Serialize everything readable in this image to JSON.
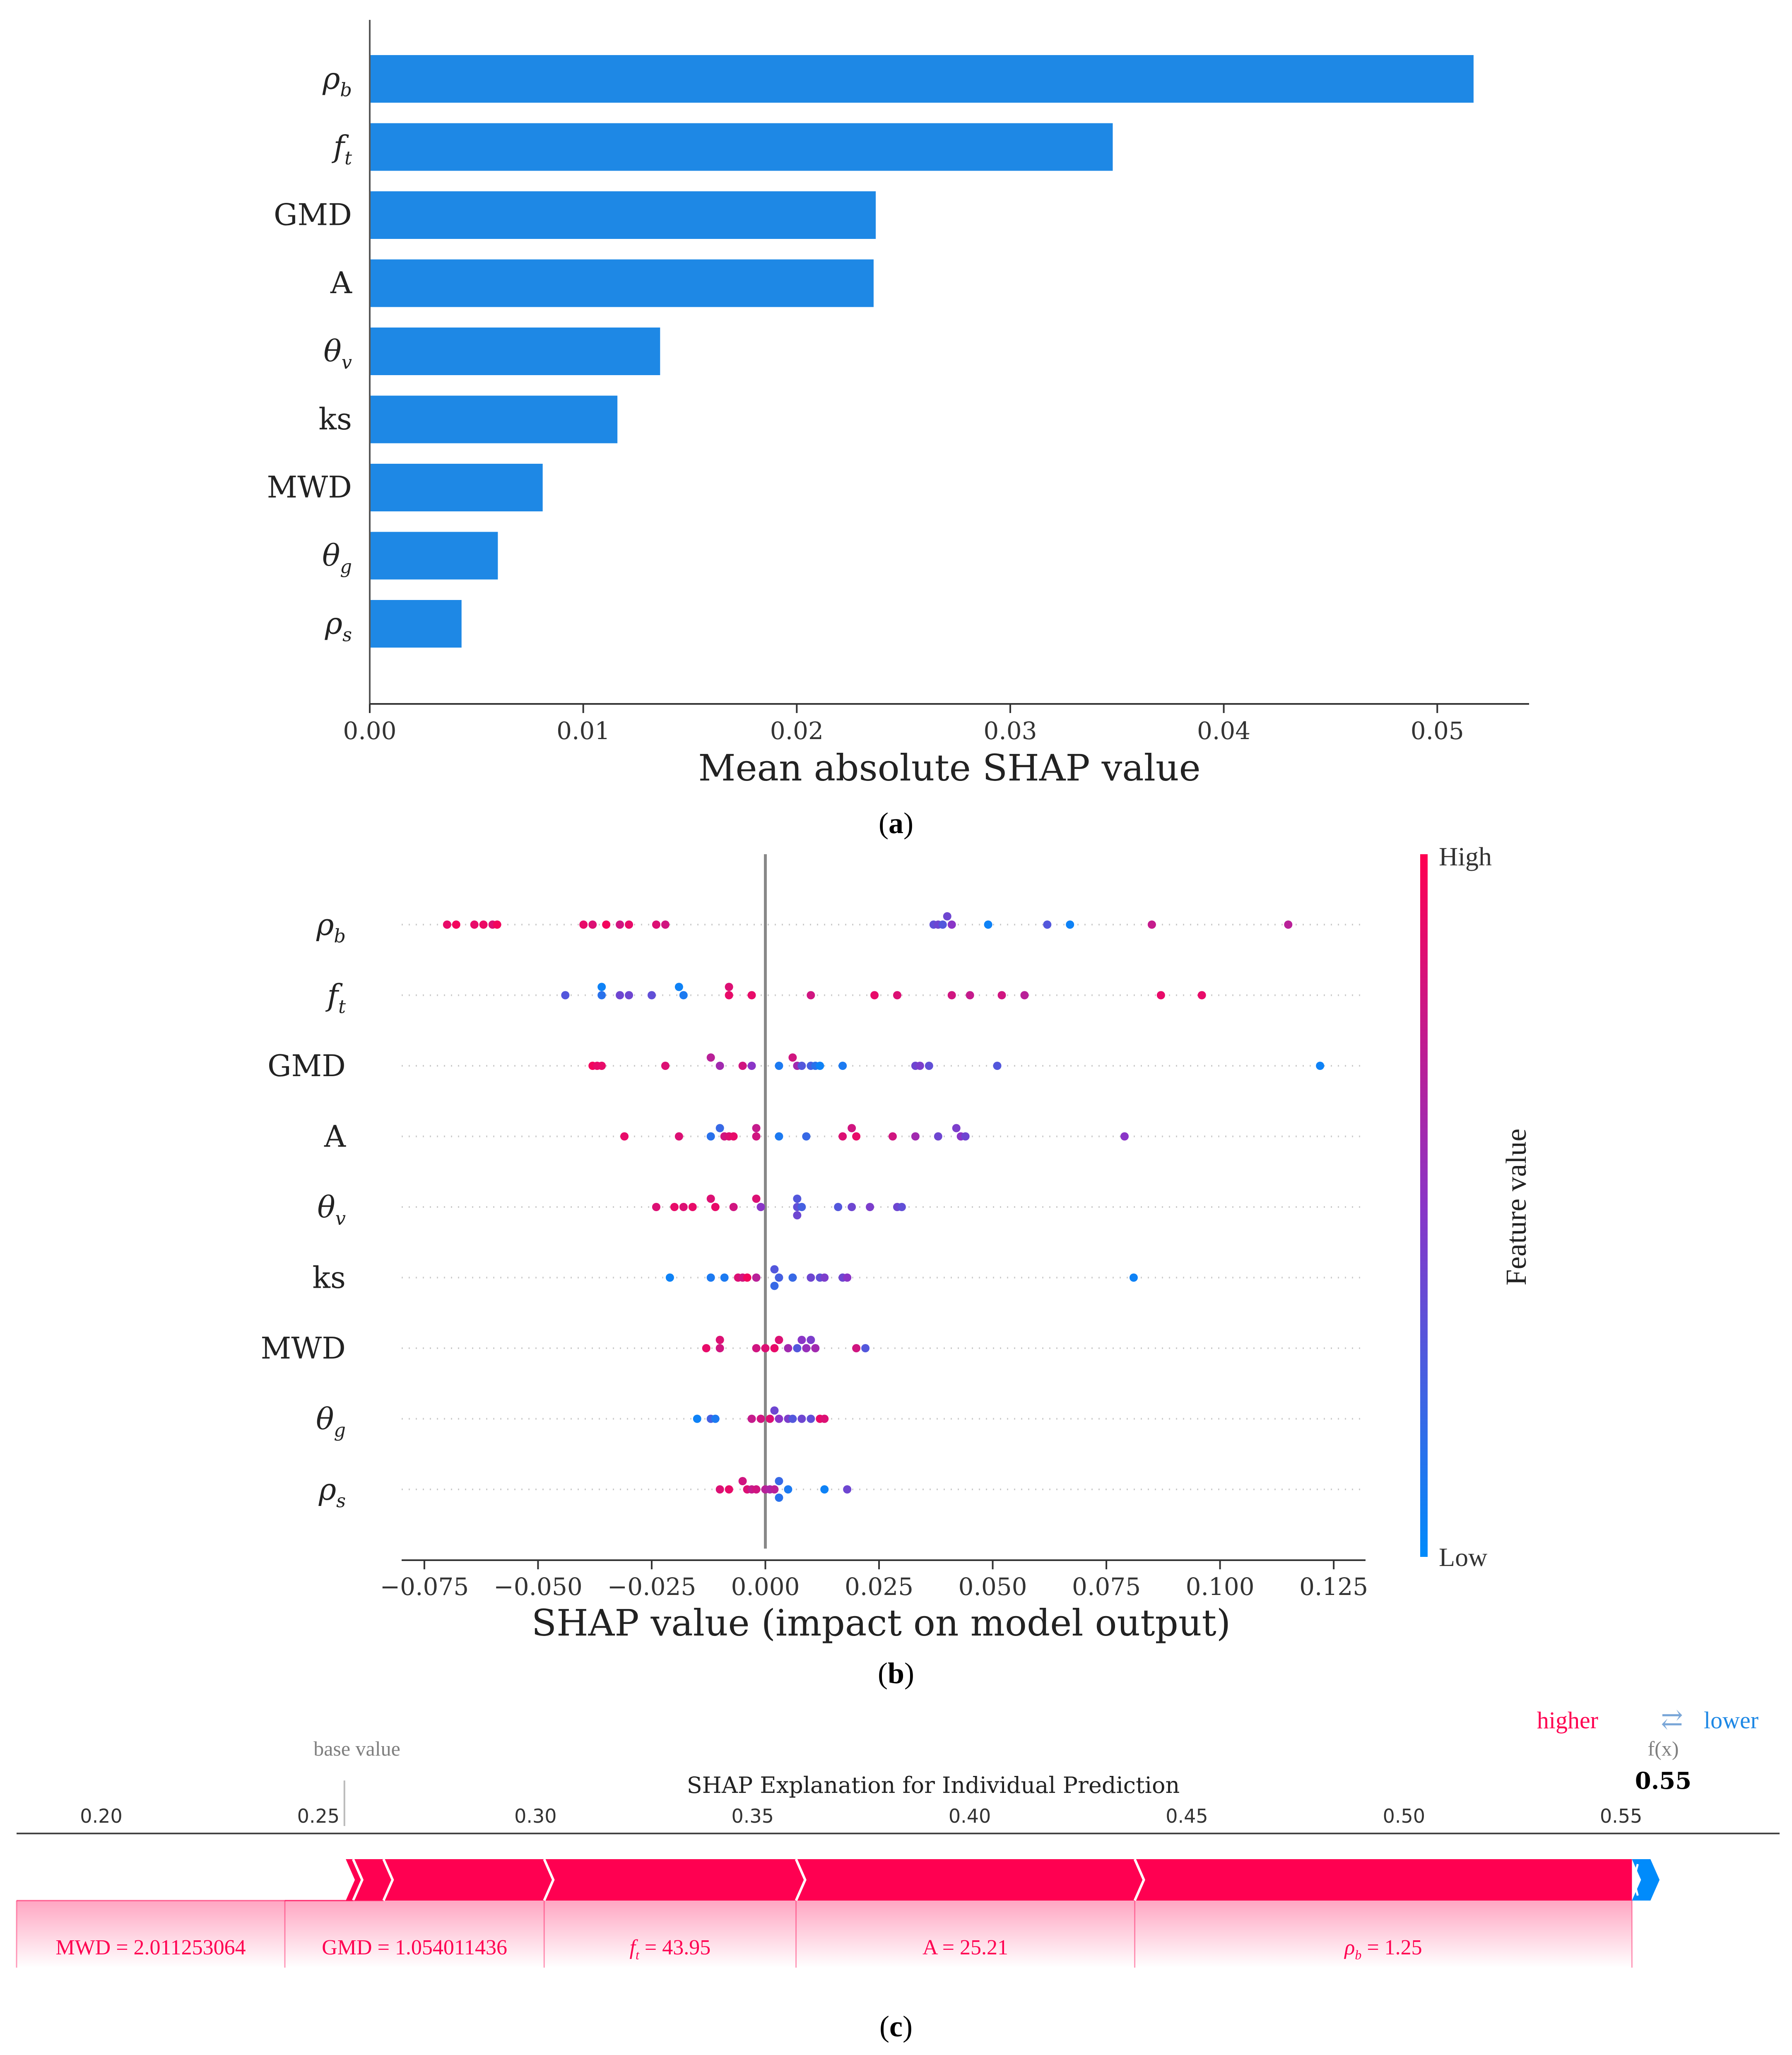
{
  "panel_labels": {
    "a": {
      "open": "(",
      "letter": "a",
      "close": ")"
    },
    "b": {
      "open": "(",
      "letter": "b",
      "close": ")"
    },
    "c": {
      "open": "(",
      "letter": "c",
      "close": ")"
    }
  },
  "colors": {
    "bar": "#1E88E5",
    "high": "#FF0051",
    "low": "#008BFB",
    "mid": "#8A35C7",
    "neg": "#1E88E5",
    "axis": "#333333",
    "grid_dots": "#cccccc",
    "text_gray": "#7f7f7f"
  },
  "chart_data": [
    {
      "id": "a",
      "type": "bar",
      "orientation": "horizontal",
      "features": [
        {
          "label": "ρ",
          "sub": "b"
        },
        {
          "label": "f",
          "sub": "t"
        },
        {
          "label": "GMD",
          "sub": ""
        },
        {
          "label": "A",
          "sub": ""
        },
        {
          "label": "θ",
          "sub": "v"
        },
        {
          "label": "ks",
          "sub": ""
        },
        {
          "label": "MWD",
          "sub": ""
        },
        {
          "label": "θ",
          "sub": "g"
        },
        {
          "label": "ρ",
          "sub": "s"
        }
      ],
      "values": [
        0.0517,
        0.0348,
        0.0237,
        0.0236,
        0.0136,
        0.0116,
        0.0081,
        0.006,
        0.0043
      ],
      "xlim": [
        0.0,
        0.0543
      ],
      "ticks": [
        0.0,
        0.01,
        0.02,
        0.03,
        0.04,
        0.05
      ],
      "tick_labels": [
        "0.00",
        "0.01",
        "0.02",
        "0.03",
        "0.04",
        "0.05"
      ],
      "xlabel": "Mean absolute SHAP value"
    },
    {
      "id": "b",
      "type": "scatter",
      "subtype": "beeswarm",
      "features": [
        {
          "label": "ρ",
          "sub": "b"
        },
        {
          "label": "f",
          "sub": "t"
        },
        {
          "label": "GMD",
          "sub": ""
        },
        {
          "label": "A",
          "sub": ""
        },
        {
          "label": "θ",
          "sub": "v"
        },
        {
          "label": "ks",
          "sub": ""
        },
        {
          "label": "MWD",
          "sub": ""
        },
        {
          "label": "θ",
          "sub": "g"
        },
        {
          "label": "ρ",
          "sub": "s"
        }
      ],
      "xlim": [
        -0.08,
        0.132
      ],
      "ticks": [
        -0.075,
        -0.05,
        -0.025,
        0.0,
        0.025,
        0.05,
        0.075,
        0.1,
        0.125
      ],
      "tick_labels": [
        "−0.075",
        "−0.050",
        "−0.025",
        "0.000",
        "0.025",
        "0.050",
        "0.075",
        "0.100",
        "0.125"
      ],
      "xlabel": "SHAP value (impact on model output)",
      "colorbar": {
        "label": "Feature value",
        "high": "High",
        "low": "Low"
      },
      "points": [
        [
          [
            -0.07,
            0,
            0.9
          ],
          [
            -0.068,
            0,
            0.95
          ],
          [
            -0.064,
            0,
            0.9
          ],
          [
            -0.062,
            0,
            0.92
          ],
          [
            -0.06,
            0,
            0.85
          ],
          [
            -0.059,
            0,
            0.95
          ],
          [
            -0.04,
            0,
            0.9
          ],
          [
            -0.038,
            0,
            0.85
          ],
          [
            -0.035,
            0,
            0.95
          ],
          [
            -0.032,
            0,
            0.8
          ],
          [
            -0.03,
            0,
            0.9
          ],
          [
            -0.024,
            0,
            0.85
          ],
          [
            -0.022,
            0,
            0.8
          ],
          [
            0.037,
            0,
            0.35
          ],
          [
            0.038,
            0,
            0.4
          ],
          [
            0.039,
            0,
            0.3
          ],
          [
            0.04,
            1,
            0.4
          ],
          [
            0.041,
            0,
            0.5
          ],
          [
            0.049,
            0,
            0.05
          ],
          [
            0.062,
            0,
            0.3
          ],
          [
            0.067,
            0,
            0.05
          ],
          [
            0.085,
            0,
            0.75
          ],
          [
            0.115,
            0,
            0.7
          ]
        ],
        [
          [
            -0.044,
            0,
            0.3
          ],
          [
            -0.036,
            1,
            0.05
          ],
          [
            -0.036,
            0,
            0.15
          ],
          [
            -0.032,
            0,
            0.4
          ],
          [
            -0.03,
            0,
            0.4
          ],
          [
            -0.025,
            0,
            0.35
          ],
          [
            -0.019,
            1,
            0.05
          ],
          [
            -0.018,
            0,
            0.1
          ],
          [
            -0.008,
            1,
            0.85
          ],
          [
            -0.008,
            0,
            0.9
          ],
          [
            -0.003,
            0,
            0.9
          ],
          [
            0.01,
            0,
            0.8
          ],
          [
            0.024,
            0,
            0.9
          ],
          [
            0.029,
            0,
            0.85
          ],
          [
            0.041,
            0,
            0.8
          ],
          [
            0.045,
            0,
            0.75
          ],
          [
            0.052,
            0,
            0.8
          ],
          [
            0.057,
            0,
            0.7
          ],
          [
            0.087,
            0,
            0.9
          ],
          [
            0.096,
            0,
            0.9
          ]
        ],
        [
          [
            -0.038,
            0,
            0.95
          ],
          [
            -0.037,
            0,
            0.9
          ],
          [
            -0.036,
            0,
            0.9
          ],
          [
            -0.022,
            0,
            0.85
          ],
          [
            -0.012,
            1,
            0.7
          ],
          [
            -0.01,
            0,
            0.6
          ],
          [
            -0.005,
            0,
            0.8
          ],
          [
            -0.003,
            0,
            0.5
          ],
          [
            0.003,
            0,
            0.1
          ],
          [
            0.006,
            1,
            0.8
          ],
          [
            0.007,
            0,
            0.6
          ],
          [
            0.008,
            0,
            0.3
          ],
          [
            0.01,
            0,
            0.25
          ],
          [
            0.011,
            0,
            0.15
          ],
          [
            0.012,
            0,
            0.05
          ],
          [
            0.017,
            0,
            0.1
          ],
          [
            0.033,
            0,
            0.4
          ],
          [
            0.034,
            0,
            0.45
          ],
          [
            0.036,
            0,
            0.35
          ],
          [
            0.051,
            0,
            0.3
          ],
          [
            0.122,
            0,
            0.05
          ]
        ],
        [
          [
            -0.031,
            0,
            0.9
          ],
          [
            -0.019,
            0,
            0.85
          ],
          [
            -0.012,
            0,
            0.15
          ],
          [
            -0.01,
            1,
            0.2
          ],
          [
            -0.009,
            0,
            0.8
          ],
          [
            -0.008,
            0,
            0.85
          ],
          [
            -0.007,
            0,
            0.9
          ],
          [
            -0.002,
            1,
            0.75
          ],
          [
            -0.002,
            0,
            0.8
          ],
          [
            0.003,
            0,
            0.1
          ],
          [
            0.009,
            0,
            0.2
          ],
          [
            0.017,
            0,
            0.85
          ],
          [
            0.019,
            1,
            0.8
          ],
          [
            0.02,
            0,
            0.9
          ],
          [
            0.028,
            0,
            0.8
          ],
          [
            0.033,
            0,
            0.6
          ],
          [
            0.038,
            0,
            0.4
          ],
          [
            0.042,
            1,
            0.45
          ],
          [
            0.043,
            0,
            0.5
          ],
          [
            0.044,
            0,
            0.4
          ],
          [
            0.079,
            0,
            0.5
          ]
        ],
        [
          [
            -0.024,
            0,
            0.85
          ],
          [
            -0.02,
            0,
            0.9
          ],
          [
            -0.018,
            0,
            0.85
          ],
          [
            -0.016,
            0,
            0.9
          ],
          [
            -0.012,
            1,
            0.85
          ],
          [
            -0.011,
            0,
            0.9
          ],
          [
            -0.007,
            0,
            0.8
          ],
          [
            -0.002,
            1,
            0.85
          ],
          [
            -0.001,
            0,
            0.5
          ],
          [
            0.007,
            1,
            0.3
          ],
          [
            0.007,
            0,
            0.35
          ],
          [
            0.008,
            0,
            0.25
          ],
          [
            0.007,
            -1,
            0.4
          ],
          [
            0.016,
            0,
            0.3
          ],
          [
            0.019,
            0,
            0.4
          ],
          [
            0.023,
            0,
            0.45
          ],
          [
            0.029,
            0,
            0.4
          ],
          [
            0.03,
            0,
            0.35
          ]
        ],
        [
          [
            -0.021,
            0,
            0.05
          ],
          [
            -0.012,
            0,
            0.1
          ],
          [
            -0.009,
            0,
            0.1
          ],
          [
            -0.006,
            0,
            0.85
          ],
          [
            -0.005,
            0,
            0.8
          ],
          [
            -0.004,
            0,
            0.95
          ],
          [
            -0.002,
            0,
            0.7
          ],
          [
            0.002,
            1,
            0.3
          ],
          [
            0.002,
            -1,
            0.2
          ],
          [
            0.003,
            0,
            0.25
          ],
          [
            0.006,
            0,
            0.2
          ],
          [
            0.01,
            0,
            0.4
          ],
          [
            0.012,
            0,
            0.35
          ],
          [
            0.013,
            0,
            0.45
          ],
          [
            0.017,
            0,
            0.4
          ],
          [
            0.018,
            0,
            0.5
          ],
          [
            0.081,
            0,
            0.05
          ]
        ],
        [
          [
            -0.013,
            0,
            0.9
          ],
          [
            -0.01,
            1,
            0.85
          ],
          [
            -0.01,
            0,
            0.8
          ],
          [
            -0.002,
            0,
            0.8
          ],
          [
            0.0,
            0,
            0.85
          ],
          [
            0.002,
            0,
            0.9
          ],
          [
            0.003,
            1,
            0.85
          ],
          [
            0.005,
            0,
            0.6
          ],
          [
            0.007,
            0,
            0.3
          ],
          [
            0.008,
            1,
            0.5
          ],
          [
            0.009,
            0,
            0.55
          ],
          [
            0.01,
            1,
            0.45
          ],
          [
            0.011,
            0,
            0.6
          ],
          [
            0.02,
            0,
            0.8
          ],
          [
            0.022,
            0,
            0.3
          ]
        ],
        [
          [
            -0.015,
            0,
            0.05
          ],
          [
            -0.012,
            0,
            0.25
          ],
          [
            -0.011,
            0,
            0.1
          ],
          [
            -0.003,
            0,
            0.75
          ],
          [
            -0.001,
            0,
            0.8
          ],
          [
            0.001,
            0,
            0.85
          ],
          [
            0.002,
            1,
            0.4
          ],
          [
            0.003,
            0,
            0.5
          ],
          [
            0.005,
            0,
            0.45
          ],
          [
            0.006,
            0,
            0.3
          ],
          [
            0.008,
            0,
            0.4
          ],
          [
            0.01,
            0,
            0.35
          ],
          [
            0.012,
            0,
            0.9
          ],
          [
            0.013,
            0,
            0.85
          ]
        ],
        [
          [
            -0.01,
            0,
            0.85
          ],
          [
            -0.008,
            0,
            0.9
          ],
          [
            -0.005,
            1,
            0.8
          ],
          [
            -0.004,
            0,
            0.85
          ],
          [
            -0.003,
            0,
            0.75
          ],
          [
            -0.002,
            0,
            0.8
          ],
          [
            0.0,
            0,
            0.7
          ],
          [
            0.001,
            0,
            0.65
          ],
          [
            0.002,
            0,
            0.7
          ],
          [
            0.003,
            1,
            0.2
          ],
          [
            0.003,
            -1,
            0.15
          ],
          [
            0.005,
            0,
            0.1
          ],
          [
            0.013,
            0,
            0.05
          ],
          [
            0.018,
            0,
            0.4
          ]
        ]
      ]
    },
    {
      "id": "c",
      "type": "bar",
      "subtype": "force_plot",
      "title": "SHAP Explanation for Individual Prediction",
      "legend": {
        "higher": "higher",
        "arrows": "⇄",
        "lower": "lower"
      },
      "base_value_label": "base value",
      "base_value": 0.256,
      "fx_label": "f(x)",
      "fx_value": 0.55,
      "fx_text": "0.55",
      "xlim": [
        0.1805,
        0.5865
      ],
      "ticks": [
        0.2,
        0.25,
        0.3,
        0.35,
        0.4,
        0.45,
        0.5,
        0.55
      ],
      "tick_labels": [
        "0.20",
        "0.25",
        "0.30",
        "0.35",
        "0.40",
        "0.45",
        "0.50",
        "0.55"
      ],
      "segments": [
        {
          "from": 0.256,
          "to": 0.258,
          "feature": "",
          "value": ""
        },
        {
          "from": 0.258,
          "to": 0.265,
          "feature": "MWD",
          "value": "2.011253064"
        },
        {
          "from": 0.265,
          "to": 0.302,
          "feature": "GMD",
          "value": "1.054011436"
        },
        {
          "from": 0.302,
          "to": 0.36,
          "feature": "f",
          "sub": "t",
          "value": "43.95"
        },
        {
          "from": 0.36,
          "to": 0.438,
          "feature": "A",
          "value": "25.21"
        },
        {
          "from": 0.438,
          "to": 0.5525,
          "feature": "ρ",
          "sub": "b",
          "value": "1.25"
        }
      ],
      "negative_from": 0.5525,
      "negative_to": 0.556,
      "labels": [
        {
          "text": "MWD = 2.011253064"
        },
        {
          "text": "GMD = 1.054011436"
        },
        {
          "main": "f",
          "sub": "t",
          "rest": " = 43.95"
        },
        {
          "text": "A = 25.21"
        },
        {
          "main": "ρ",
          "sub": "b",
          "rest": " = 1.25"
        }
      ]
    }
  ]
}
